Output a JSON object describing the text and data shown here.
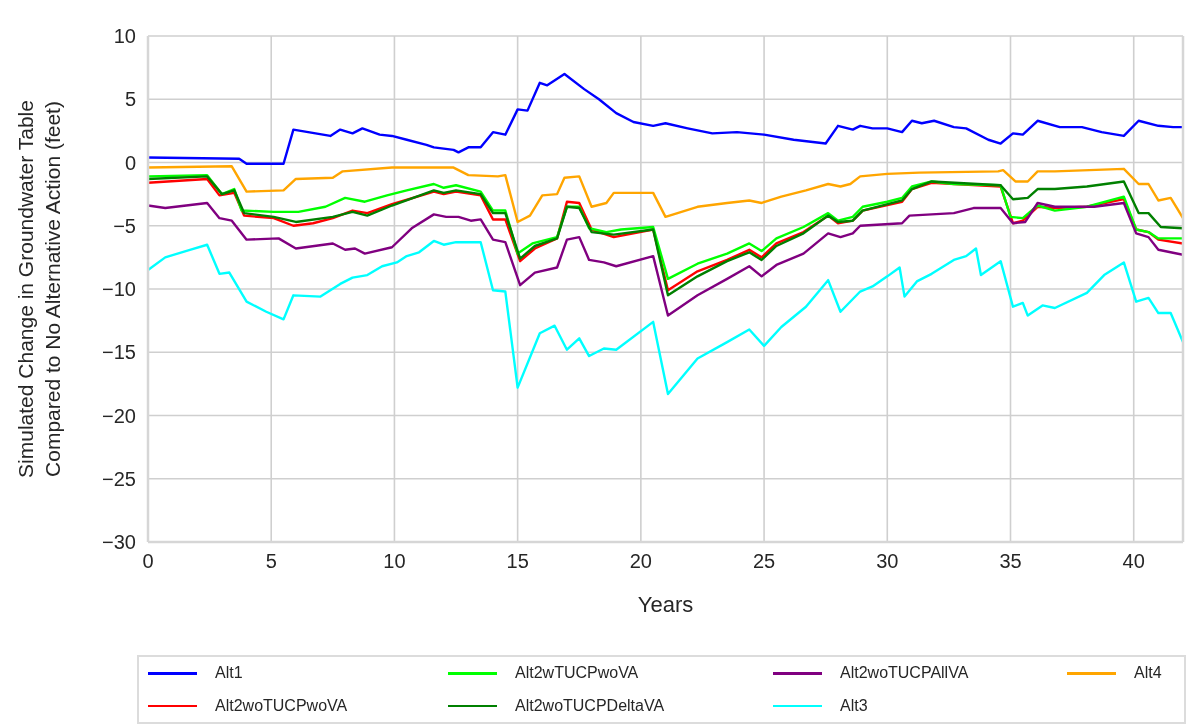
{
  "chart_data": {
    "type": "line",
    "xlabel": "Years",
    "ylabel": "Simulated Change in Groundwater Table\nCompared to No Alternative Action (feet)",
    "xlim": [
      0,
      42
    ],
    "xticks": [
      0,
      5,
      10,
      15,
      20,
      25,
      30,
      35,
      40
    ],
    "ylim": [
      -30,
      10
    ],
    "yticks": [
      -30,
      -25,
      -20,
      -15,
      -10,
      -5,
      0,
      5,
      10
    ],
    "grid": true,
    "legend": "bottom",
    "series": [
      {
        "name": "Alt1",
        "color": "#0000ff",
        "x": [
          0,
          3.7,
          4.0,
          5.5,
          5.9,
          7.4,
          7.8,
          8.3,
          8.7,
          9.4,
          9.9,
          10.5,
          11.3,
          11.6,
          12.4,
          12.6,
          13.0,
          13.5,
          14.0,
          14.5,
          15.0,
          15.4,
          15.9,
          16.2,
          16.9,
          17.7,
          18.3,
          19.0,
          19.7,
          20.5,
          21.0,
          21.9,
          22.9,
          23.9,
          25.0,
          26.2,
          27.5,
          28.0,
          28.4,
          28.6,
          28.9,
          29.4,
          30.0,
          30.6,
          31.0,
          31.4,
          31.9,
          32.7,
          33.2,
          34.1,
          34.6,
          35.1,
          35.5,
          36.1,
          37.0,
          37.9,
          38.7,
          39.6,
          40.2,
          41.0,
          41.6,
          42
        ],
        "values": [
          0.4,
          0.3,
          -0.1,
          -0.1,
          2.6,
          2.1,
          2.6,
          2.3,
          2.7,
          2.2,
          2.1,
          1.8,
          1.4,
          1.2,
          1.0,
          0.8,
          1.2,
          1.2,
          2.4,
          2.2,
          4.2,
          4.1,
          6.3,
          6.1,
          7.0,
          5.8,
          5.0,
          3.9,
          3.2,
          2.9,
          3.1,
          2.7,
          2.3,
          2.4,
          2.2,
          1.8,
          1.5,
          2.9,
          2.7,
          2.6,
          2.9,
          2.7,
          2.7,
          2.4,
          3.3,
          3.1,
          3.3,
          2.8,
          2.7,
          1.8,
          1.5,
          2.3,
          2.2,
          3.3,
          2.8,
          2.8,
          2.4,
          2.1,
          3.3,
          2.9,
          2.8,
          2.8
        ]
      },
      {
        "name": "Alt2woTUCPwoVA",
        "color": "#ff0000",
        "x": [
          0,
          2.4,
          2.9,
          3.5,
          3.9,
          5.1,
          5.9,
          6.7,
          7.5,
          8.3,
          8.9,
          9.9,
          11.6,
          12.0,
          12.5,
          13.5,
          14.0,
          14.5,
          15.1,
          15.7,
          16.6,
          17.0,
          17.5,
          18.0,
          18.9,
          20.5,
          21.1,
          22.3,
          23.5,
          24.4,
          24.9,
          25.5,
          26.6,
          27.6,
          28.0,
          28.6,
          29.0,
          30.6,
          31.0,
          31.8,
          34.6,
          35.1,
          35.5,
          36.1,
          36.8,
          38.1,
          39.6,
          40.1,
          40.6,
          41.0,
          42
        ],
        "values": [
          -1.6,
          -1.3,
          -2.6,
          -2.4,
          -4.2,
          -4.4,
          -5.0,
          -4.8,
          -4.4,
          -3.8,
          -4.0,
          -3.3,
          -2.3,
          -2.5,
          -2.3,
          -2.6,
          -4.5,
          -4.5,
          -7.8,
          -6.8,
          -6.0,
          -3.1,
          -3.2,
          -5.3,
          -5.9,
          -5.3,
          -10.1,
          -8.6,
          -7.7,
          -6.9,
          -7.5,
          -6.4,
          -5.5,
          -4.2,
          -4.8,
          -4.6,
          -3.8,
          -3.1,
          -2.1,
          -1.6,
          -1.9,
          -4.8,
          -4.6,
          -3.5,
          -3.6,
          -3.5,
          -2.9,
          -5.3,
          -5.5,
          -6.1,
          -6.4
        ]
      },
      {
        "name": "Alt2wTUCPwoVA",
        "color": "#00ff00",
        "x": [
          0,
          2.4,
          3.0,
          3.5,
          3.8,
          5.1,
          6.1,
          7.2,
          8.0,
          8.8,
          9.7,
          10.5,
          11.6,
          12.0,
          12.5,
          13.5,
          14.0,
          14.5,
          15.0,
          15.6,
          16.6,
          17.0,
          17.5,
          17.9,
          18.6,
          19.2,
          20.5,
          21.1,
          22.3,
          23.5,
          24.4,
          24.9,
          25.5,
          26.6,
          27.6,
          28.0,
          28.6,
          29.0,
          30.0,
          30.6,
          31.0,
          31.8,
          32.7,
          34.6,
          35.0,
          35.5,
          36.1,
          36.8,
          38.1,
          39.6,
          40.1,
          40.6,
          41.0,
          42
        ],
        "values": [
          -1.1,
          -1.0,
          -2.5,
          -2.1,
          -3.8,
          -3.9,
          -3.9,
          -3.5,
          -2.8,
          -3.1,
          -2.6,
          -2.2,
          -1.7,
          -2.0,
          -1.8,
          -2.3,
          -3.8,
          -3.8,
          -7.2,
          -6.4,
          -5.9,
          -3.5,
          -3.5,
          -5.2,
          -5.5,
          -5.3,
          -5.1,
          -9.2,
          -8.0,
          -7.2,
          -6.4,
          -7.0,
          -6.0,
          -5.1,
          -4.0,
          -4.6,
          -4.3,
          -3.5,
          -3.1,
          -2.8,
          -1.9,
          -1.5,
          -1.7,
          -1.8,
          -4.3,
          -4.4,
          -3.4,
          -3.8,
          -3.5,
          -2.7,
          -5.3,
          -5.5,
          -6.0,
          -6.0
        ]
      },
      {
        "name": "Alt2woTUCPDeltaVA",
        "color": "#008000",
        "x": [
          0,
          2.4,
          3.0,
          3.5,
          3.9,
          5.1,
          6.0,
          7.5,
          8.3,
          8.9,
          9.9,
          11.6,
          12.0,
          12.5,
          13.5,
          14.0,
          14.5,
          15.1,
          15.7,
          16.6,
          17.0,
          17.5,
          18.0,
          18.9,
          20.5,
          21.1,
          22.3,
          23.5,
          24.4,
          24.9,
          25.5,
          26.6,
          27.6,
          28.0,
          28.6,
          29.0,
          30.6,
          31.0,
          31.8,
          34.6,
          35.1,
          35.7,
          36.1,
          36.8,
          38.1,
          39.6,
          40.2,
          40.6,
          41.1,
          42
        ],
        "values": [
          -1.3,
          -1.1,
          -2.5,
          -2.2,
          -4.0,
          -4.3,
          -4.7,
          -4.3,
          -3.9,
          -4.2,
          -3.4,
          -2.2,
          -2.4,
          -2.2,
          -2.5,
          -4.0,
          -4.0,
          -7.6,
          -6.6,
          -6.0,
          -3.5,
          -3.6,
          -5.5,
          -5.7,
          -5.3,
          -10.5,
          -9.0,
          -7.8,
          -7.1,
          -7.7,
          -6.6,
          -5.6,
          -4.2,
          -4.7,
          -4.6,
          -3.8,
          -3.0,
          -2.1,
          -1.5,
          -1.8,
          -2.9,
          -2.8,
          -2.1,
          -2.1,
          -1.9,
          -1.5,
          -4.0,
          -4.0,
          -5.1,
          -5.2
        ]
      },
      {
        "name": "Alt2woTUCPAllVA",
        "color": "#800080",
        "x": [
          0,
          0.7,
          2.4,
          2.9,
          3.4,
          4.0,
          5.3,
          6.0,
          7.5,
          8.0,
          8.4,
          8.8,
          9.9,
          10.7,
          11.6,
          12.1,
          12.6,
          13.1,
          13.5,
          14.0,
          14.5,
          15.1,
          15.7,
          16.6,
          17.0,
          17.5,
          17.9,
          18.5,
          19.0,
          20.5,
          21.1,
          22.3,
          23.5,
          24.4,
          24.9,
          25.5,
          26.6,
          27.6,
          28.1,
          28.6,
          28.9,
          30.6,
          30.9,
          32.7,
          33.5,
          34.6,
          35.1,
          35.6,
          36.1,
          36.8,
          38.4,
          39.6,
          40.1,
          40.6,
          41.0,
          42
        ],
        "values": [
          -3.4,
          -3.6,
          -3.2,
          -4.4,
          -4.6,
          -6.1,
          -6.0,
          -6.8,
          -6.4,
          -6.9,
          -6.8,
          -7.2,
          -6.7,
          -5.2,
          -4.1,
          -4.3,
          -4.3,
          -4.6,
          -4.5,
          -6.1,
          -6.3,
          -9.7,
          -8.7,
          -8.3,
          -6.1,
          -5.9,
          -7.7,
          -7.9,
          -8.2,
          -7.4,
          -12.1,
          -10.5,
          -9.2,
          -8.2,
          -9.0,
          -8.1,
          -7.2,
          -5.6,
          -5.9,
          -5.6,
          -5.0,
          -4.8,
          -4.2,
          -4.0,
          -3.6,
          -3.6,
          -4.8,
          -4.7,
          -3.2,
          -3.5,
          -3.5,
          -3.2,
          -5.6,
          -5.9,
          -6.9,
          -7.3
        ]
      },
      {
        "name": "Alt3",
        "color": "#00ffff",
        "x": [
          0,
          0.7,
          1.7,
          2.4,
          2.9,
          3.3,
          4.0,
          4.8,
          5.5,
          5.9,
          7.0,
          7.8,
          8.3,
          8.9,
          9.5,
          10.1,
          10.5,
          11.0,
          11.6,
          12.0,
          12.5,
          13.5,
          14.0,
          14.5,
          15.0,
          15.9,
          16.5,
          17.0,
          17.5,
          17.9,
          18.5,
          19.0,
          20.5,
          21.1,
          22.3,
          23.5,
          24.4,
          25.0,
          25.7,
          26.7,
          27.6,
          28.1,
          28.9,
          29.4,
          30.0,
          30.5,
          30.7,
          31.2,
          31.8,
          32.7,
          33.2,
          33.6,
          33.8,
          34.6,
          35.1,
          35.5,
          35.7,
          36.3,
          36.8,
          38.1,
          38.8,
          39.6,
          40.1,
          40.6,
          41.0,
          41.5,
          42
        ],
        "values": [
          -8.5,
          -7.5,
          -6.9,
          -6.5,
          -8.8,
          -8.7,
          -11.0,
          -11.8,
          -12.4,
          -10.5,
          -10.6,
          -9.6,
          -9.1,
          -8.9,
          -8.2,
          -7.9,
          -7.4,
          -7.1,
          -6.2,
          -6.5,
          -6.3,
          -6.3,
          -10.1,
          -10.2,
          -17.8,
          -13.5,
          -12.9,
          -14.8,
          -13.9,
          -15.3,
          -14.7,
          -14.8,
          -12.6,
          -18.3,
          -15.5,
          -14.2,
          -13.2,
          -14.5,
          -13.0,
          -11.4,
          -9.3,
          -11.8,
          -10.2,
          -9.8,
          -9.0,
          -8.3,
          -10.6,
          -9.4,
          -8.8,
          -7.7,
          -7.4,
          -6.8,
          -8.9,
          -7.8,
          -11.4,
          -11.1,
          -12.1,
          -11.3,
          -11.5,
          -10.3,
          -8.9,
          -7.9,
          -11.0,
          -10.7,
          -11.9,
          -11.9,
          -14.2
        ]
      },
      {
        "name": "Alt4",
        "color": "#ffa500",
        "x": [
          0,
          3.4,
          4.0,
          5.5,
          6.0,
          7.5,
          7.9,
          9.9,
          12.4,
          13.0,
          14.2,
          14.5,
          15.0,
          15.5,
          16.0,
          16.6,
          16.9,
          17.5,
          18.0,
          18.6,
          18.9,
          20.5,
          21.0,
          22.3,
          23.5,
          24.4,
          24.9,
          25.7,
          26.7,
          27.6,
          28.1,
          28.5,
          28.9,
          30.0,
          31.3,
          34.5,
          34.7,
          35.2,
          35.7,
          36.1,
          36.8,
          39.6,
          40.2,
          40.6,
          41.0,
          41.5,
          42
        ],
        "values": [
          -0.4,
          -0.3,
          -2.3,
          -2.2,
          -1.3,
          -1.2,
          -0.7,
          -0.4,
          -0.4,
          -1.0,
          -1.1,
          -1.0,
          -4.7,
          -4.2,
          -2.6,
          -2.5,
          -1.2,
          -1.1,
          -3.5,
          -3.2,
          -2.4,
          -2.4,
          -4.3,
          -3.5,
          -3.2,
          -3.0,
          -3.2,
          -2.7,
          -2.2,
          -1.7,
          -1.9,
          -1.7,
          -1.1,
          -0.9,
          -0.8,
          -0.7,
          -0.6,
          -1.5,
          -1.5,
          -0.7,
          -0.7,
          -0.5,
          -1.7,
          -1.7,
          -3.0,
          -2.8,
          -4.4
        ]
      }
    ]
  }
}
